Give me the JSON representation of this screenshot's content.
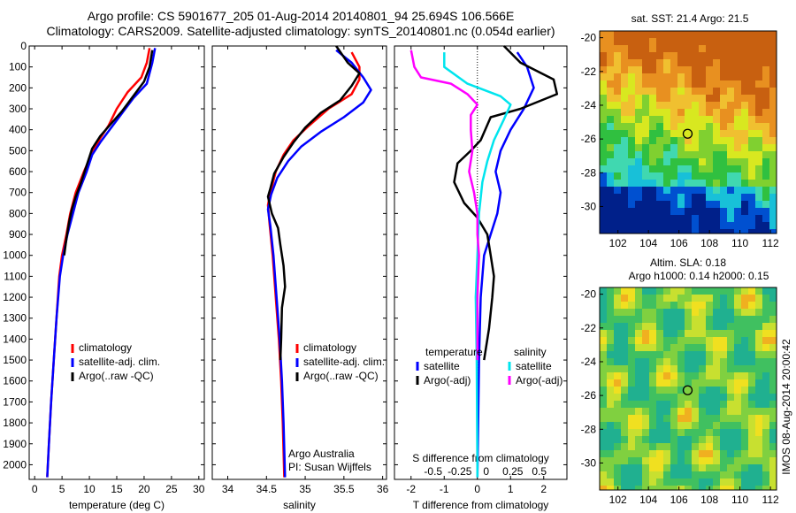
{
  "header": {
    "line1": "Argo profile: CS 5901677_205 01-Aug-2014 20140801_94 25.694S 106.566E",
    "line2": "Climatology: CARS2009. Satellite-adjusted climatology: synTS_20140801.nc (0.054d earlier)"
  },
  "timestamp": "IMOS 08-Aug-2014 20:00:42",
  "colors": {
    "climatology": "#ff0000",
    "satellite": "#0000ff",
    "argo": "#000000",
    "satellite_diff_s": "#00e5ee",
    "argo_diff_s": "#ff00ff"
  },
  "chart_data": [
    {
      "id": "temperature",
      "type": "line",
      "xlabel": "temperature (deg C)",
      "ylabel": "",
      "xlim": [
        -1,
        31
      ],
      "ylim": [
        2070,
        0
      ],
      "xticks": [
        0,
        5,
        10,
        15,
        20,
        25,
        30
      ],
      "yticks": [
        0,
        100,
        200,
        300,
        400,
        500,
        600,
        700,
        800,
        900,
        1000,
        1100,
        1200,
        1300,
        1400,
        1500,
        1600,
        1700,
        1800,
        1900,
        2000
      ],
      "legend": [
        "climatology",
        "satellite-adj. clim.",
        "Argo(..raw -QC)"
      ],
      "series": [
        {
          "name": "climatology",
          "color": "#ff0000",
          "points": [
            [
              21,
              10
            ],
            [
              20.5,
              80
            ],
            [
              19.5,
              150
            ],
            [
              17,
              220
            ],
            [
              15,
              300
            ],
            [
              13.5,
              380
            ],
            [
              12,
              440
            ],
            [
              10.5,
              510
            ],
            [
              9,
              600
            ],
            [
              7.5,
              700
            ],
            [
              6.5,
              800
            ],
            [
              5.8,
              900
            ],
            [
              5,
              1000
            ],
            [
              4.5,
              1100
            ],
            [
              4,
              1300
            ],
            [
              3.5,
              1500
            ],
            [
              3,
              1700
            ],
            [
              2.6,
              1900
            ],
            [
              2.3,
              2060
            ]
          ]
        },
        {
          "name": "satellite-adj. clim.",
          "color": "#0000ff",
          "points": [
            [
              22,
              10
            ],
            [
              21.5,
              80
            ],
            [
              20.5,
              180
            ],
            [
              18,
              250
            ],
            [
              16,
              320
            ],
            [
              14,
              390
            ],
            [
              12,
              460
            ],
            [
              10.5,
              520
            ],
            [
              9.5,
              600
            ],
            [
              8,
              700
            ],
            [
              7,
              800
            ],
            [
              6,
              900
            ],
            [
              5.2,
              1000
            ],
            [
              4.6,
              1100
            ],
            [
              4,
              1300
            ],
            [
              3.5,
              1500
            ],
            [
              3,
              1700
            ],
            [
              2.6,
              1900
            ],
            [
              2.3,
              2060
            ]
          ]
        },
        {
          "name": "Argo(..raw -QC)",
          "color": "#000000",
          "points": [
            [
              21.5,
              20
            ],
            [
              21,
              100
            ],
            [
              20,
              170
            ],
            [
              18,
              240
            ],
            [
              16,
              310
            ],
            [
              14,
              370
            ],
            [
              12,
              430
            ],
            [
              10.5,
              490
            ],
            [
              9.5,
              570
            ],
            [
              8.5,
              650
            ],
            [
              7.5,
              720
            ],
            [
              6.8,
              780
            ],
            [
              6.3,
              840
            ],
            [
              5.8,
              920
            ],
            [
              5.4,
              1000
            ]
          ]
        }
      ]
    },
    {
      "id": "salinity",
      "type": "line",
      "xlabel": "salinity",
      "ylabel": "",
      "xlim": [
        33.8,
        36.05
      ],
      "ylim": [
        2070,
        0
      ],
      "xticks": [
        34,
        34.5,
        35,
        35.5,
        36
      ],
      "yticks": [
        0,
        100,
        200,
        300,
        400,
        500,
        600,
        700,
        800,
        900,
        1000,
        1100,
        1200,
        1300,
        1400,
        1500,
        1600,
        1700,
        1800,
        1900,
        2000
      ],
      "legend": [
        "climatology",
        "satellite-adj. clim.",
        "Argo(..raw -QC)"
      ],
      "series": [
        {
          "name": "climatology",
          "color": "#ff0000",
          "points": [
            [
              35.6,
              30
            ],
            [
              35.7,
              100
            ],
            [
              35.7,
              160
            ],
            [
              35.6,
              230
            ],
            [
              35.3,
              300
            ],
            [
              35.05,
              380
            ],
            [
              34.85,
              450
            ],
            [
              34.72,
              520
            ],
            [
              34.62,
              600
            ],
            [
              34.55,
              700
            ],
            [
              34.52,
              760
            ],
            [
              34.54,
              850
            ],
            [
              34.58,
              1000
            ],
            [
              34.62,
              1200
            ],
            [
              34.66,
              1400
            ],
            [
              34.69,
              1600
            ],
            [
              34.71,
              1800
            ],
            [
              34.73,
              2060
            ]
          ]
        },
        {
          "name": "satellite-adj. clim.",
          "color": "#0000ff",
          "points": [
            [
              35.4,
              20
            ],
            [
              35.6,
              80
            ],
            [
              35.75,
              150
            ],
            [
              35.85,
              210
            ],
            [
              35.75,
              270
            ],
            [
              35.5,
              340
            ],
            [
              35.2,
              410
            ],
            [
              34.95,
              480
            ],
            [
              34.78,
              550
            ],
            [
              34.64,
              630
            ],
            [
              34.56,
              710
            ],
            [
              34.52,
              780
            ],
            [
              34.55,
              860
            ],
            [
              34.59,
              1000
            ],
            [
              34.63,
              1200
            ],
            [
              34.67,
              1400
            ],
            [
              34.7,
              1600
            ],
            [
              34.72,
              1800
            ],
            [
              34.74,
              2060
            ]
          ]
        },
        {
          "name": "Argo(..raw -QC)",
          "color": "#000000",
          "points": [
            [
              35.4,
              0
            ],
            [
              35.55,
              80
            ],
            [
              35.7,
              130
            ],
            [
              35.6,
              190
            ],
            [
              35.45,
              260
            ],
            [
              35.2,
              320
            ],
            [
              35,
              390
            ],
            [
              34.85,
              460
            ],
            [
              34.72,
              530
            ],
            [
              34.6,
              610
            ],
            [
              34.55,
              680
            ],
            [
              34.52,
              720
            ],
            [
              34.57,
              800
            ],
            [
              34.65,
              870
            ],
            [
              34.68,
              950
            ],
            [
              34.72,
              1050
            ],
            [
              34.74,
              1150
            ],
            [
              34.7,
              1250
            ],
            [
              34.69,
              1400
            ],
            [
              34.68,
              1500
            ]
          ]
        }
      ]
    },
    {
      "id": "difference",
      "type": "line",
      "xlabel": "T difference from climatology",
      "title_inside": "S difference from climatology",
      "xlim": [
        -2.5,
        2.7
      ],
      "ylim": [
        2070,
        0
      ],
      "xticks": [
        -2,
        -1,
        0,
        1,
        2
      ],
      "xticks_top": [
        "-0.5",
        "-0.25",
        "0",
        "0.25",
        "0.5"
      ],
      "yticks": [
        0,
        100,
        200,
        300,
        400,
        500,
        600,
        700,
        800,
        900,
        1000,
        1100,
        1200,
        1300,
        1400,
        1500,
        1600,
        1700,
        1800,
        1900,
        2000
      ],
      "legend_title_left": "temperature",
      "legend_title_right": "salinity",
      "legend": [
        "satellite",
        "Argo(-adj)",
        "satellite",
        "Argo(-adj)"
      ],
      "series": [
        {
          "name": "temperature satellite",
          "color": "#0000ff",
          "points": [
            [
              1.2,
              30
            ],
            [
              1.5,
              100
            ],
            [
              1.7,
              200
            ],
            [
              1.4,
              300
            ],
            [
              1,
              400
            ],
            [
              0.7,
              500
            ],
            [
              0.55,
              600
            ],
            [
              0.7,
              700
            ],
            [
              0.6,
              800
            ],
            [
              0.4,
              900
            ],
            [
              0.2,
              1000
            ],
            [
              0.1,
              1200
            ],
            [
              0.05,
              1500
            ],
            [
              0,
              2060
            ]
          ]
        },
        {
          "name": "temperature Argo(-adj)",
          "color": "#000000",
          "points": [
            [
              0.8,
              0
            ],
            [
              1.3,
              80
            ],
            [
              2.3,
              160
            ],
            [
              2.4,
              230
            ],
            [
              1.3,
              300
            ],
            [
              0.4,
              340
            ],
            [
              0.1,
              450
            ],
            [
              -0.2,
              500
            ],
            [
              -0.6,
              560
            ],
            [
              -0.7,
              650
            ],
            [
              -0.4,
              750
            ],
            [
              0,
              820
            ],
            [
              0.3,
              900
            ],
            [
              0.4,
              1000
            ],
            [
              0.5,
              1100
            ],
            [
              0.45,
              1200
            ],
            [
              0.35,
              1350
            ],
            [
              0.2,
              1500
            ]
          ]
        },
        {
          "name": "salinity satellite",
          "color": "#00e5ee",
          "points": [
            [
              -1,
              30
            ],
            [
              -1,
              100
            ],
            [
              -0.3,
              180
            ],
            [
              0.7,
              240
            ],
            [
              1,
              280
            ],
            [
              0.8,
              350
            ],
            [
              0.5,
              450
            ],
            [
              0.3,
              550
            ],
            [
              0.15,
              650
            ],
            [
              0.05,
              800
            ],
            [
              0,
              1000
            ],
            [
              -0.05,
              1200
            ],
            [
              -0.02,
              1500
            ],
            [
              0,
              2060
            ]
          ]
        },
        {
          "name": "salinity Argo(-adj)",
          "color": "#ff00ff",
          "points": [
            [
              -2,
              20
            ],
            [
              -1.9,
              100
            ],
            [
              -1.7,
              150
            ],
            [
              -0.8,
              180
            ],
            [
              -0.3,
              230
            ],
            [
              0,
              280
            ],
            [
              -0.2,
              330
            ],
            [
              -0.2,
              400
            ],
            [
              -0.15,
              500
            ],
            [
              -0.25,
              600
            ],
            [
              -0.1,
              700
            ],
            [
              0,
              800
            ],
            [
              0,
              900
            ],
            [
              0.05,
              1000
            ],
            [
              0,
              1200
            ],
            [
              0,
              1500
            ]
          ]
        }
      ]
    }
  ],
  "maps": [
    {
      "id": "sst-map",
      "title": "sat. SST: 21.4  Argo: 21.5",
      "xticks": [
        102,
        104,
        106,
        108,
        110,
        112
      ],
      "yticks": [
        -20,
        -22,
        -24,
        -26,
        -28,
        -30
      ],
      "xlim": [
        100.8,
        112.4
      ],
      "ylim": [
        -31.6,
        -19.6
      ],
      "marker": {
        "lon": 106.57,
        "lat": -25.69
      }
    },
    {
      "id": "sla-map",
      "title_line1": "Altim. SLA: 0.18",
      "title_line2": "Argo h1000: 0.14 h2000: 0.15",
      "xticks": [
        102,
        104,
        106,
        108,
        110,
        112
      ],
      "yticks": [
        -20,
        -22,
        -24,
        -26,
        -28,
        -30
      ],
      "xlim": [
        100.8,
        112.4
      ],
      "ylim": [
        -31.6,
        -19.6
      ],
      "marker": {
        "lon": 106.57,
        "lat": -25.69
      }
    }
  ],
  "annotations": {
    "argo_australia": "Argo Australia",
    "pi": "PI: Susan Wijffels"
  }
}
